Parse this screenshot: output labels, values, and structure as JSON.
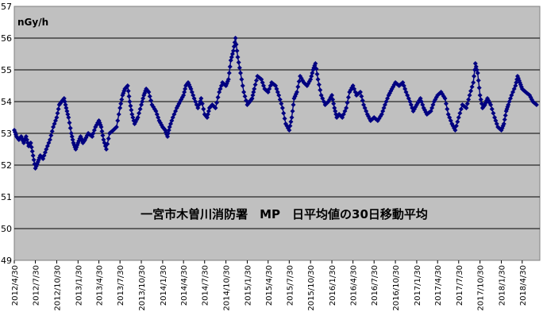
{
  "chart_data": {
    "type": "line",
    "title": "一宮市木曽川消防署　MP　日平均値の30日移動平均",
    "ylabel": "nGy/h",
    "xlabel": "",
    "ylim": [
      49,
      57
    ],
    "yticks": [
      49,
      50,
      51,
      52,
      53,
      54,
      55,
      56,
      57
    ],
    "xlim": [
      "2012-04-30",
      "2018-07-15"
    ],
    "xtick_labels": [
      "2012/4/30",
      "2012/7/30",
      "2012/10/30",
      "2013/1/30",
      "2013/4/30",
      "2013/7/30",
      "2013/10/30",
      "2014/1/30",
      "2014/4/30",
      "2014/7/30",
      "2014/10/30",
      "2015/1/30",
      "2015/4/30",
      "2015/7/30",
      "2015/10/30",
      "2016/1/30",
      "2016/4/30",
      "2016/7/30",
      "2016/10/30",
      "2017/1/30",
      "2017/4/30",
      "2017/7/30",
      "2017/10/30",
      "2018/1/30",
      "2018/4/30"
    ],
    "grid": true,
    "legend": "none",
    "series": [
      {
        "marker": "diamond",
        "color": "#000080",
        "points": [
          [
            "2012-04-30",
            53.1
          ],
          [
            "2012-05-10",
            52.9
          ],
          [
            "2012-05-20",
            52.8
          ],
          [
            "2012-05-30",
            52.9
          ],
          [
            "2012-06-10",
            52.7
          ],
          [
            "2012-06-20",
            52.9
          ],
          [
            "2012-07-01",
            52.6
          ],
          [
            "2012-07-10",
            52.7
          ],
          [
            "2012-07-20",
            52.3
          ],
          [
            "2012-07-30",
            51.9
          ],
          [
            "2012-08-10",
            52.1
          ],
          [
            "2012-08-20",
            52.3
          ],
          [
            "2012-09-01",
            52.2
          ],
          [
            "2012-09-15",
            52.5
          ],
          [
            "2012-10-01",
            52.8
          ],
          [
            "2012-10-15",
            53.2
          ],
          [
            "2012-10-30",
            53.5
          ],
          [
            "2012-11-10",
            53.9
          ],
          [
            "2012-11-20",
            54.0
          ],
          [
            "2012-12-01",
            54.1
          ],
          [
            "2012-12-10",
            53.8
          ],
          [
            "2012-12-20",
            53.5
          ],
          [
            "2013-01-01",
            53.0
          ],
          [
            "2013-01-10",
            52.7
          ],
          [
            "2013-01-20",
            52.5
          ],
          [
            "2013-01-30",
            52.7
          ],
          [
            "2013-02-10",
            52.9
          ],
          [
            "2013-02-20",
            52.7
          ],
          [
            "2013-03-01",
            52.8
          ],
          [
            "2013-03-15",
            53.0
          ],
          [
            "2013-04-01",
            52.9
          ],
          [
            "2013-04-15",
            53.2
          ],
          [
            "2013-04-30",
            53.4
          ],
          [
            "2013-05-10",
            53.2
          ],
          [
            "2013-05-20",
            52.8
          ],
          [
            "2013-06-01",
            52.5
          ],
          [
            "2013-06-15",
            53.0
          ],
          [
            "2013-07-01",
            53.1
          ],
          [
            "2013-07-15",
            53.2
          ],
          [
            "2013-07-30",
            53.8
          ],
          [
            "2013-08-10",
            54.2
          ],
          [
            "2013-08-20",
            54.4
          ],
          [
            "2013-09-01",
            54.5
          ],
          [
            "2013-09-10",
            54.0
          ],
          [
            "2013-09-20",
            53.6
          ],
          [
            "2013-10-01",
            53.3
          ],
          [
            "2013-10-15",
            53.5
          ],
          [
            "2013-10-30",
            53.9
          ],
          [
            "2013-11-10",
            54.2
          ],
          [
            "2013-11-20",
            54.4
          ],
          [
            "2013-12-01",
            54.3
          ],
          [
            "2013-12-15",
            53.9
          ],
          [
            "2014-01-01",
            53.7
          ],
          [
            "2014-01-15",
            53.4
          ],
          [
            "2014-01-30",
            53.2
          ],
          [
            "2014-02-10",
            53.1
          ],
          [
            "2014-02-20",
            52.9
          ],
          [
            "2014-03-01",
            53.2
          ],
          [
            "2014-03-15",
            53.5
          ],
          [
            "2014-04-01",
            53.8
          ],
          [
            "2014-04-15",
            54.0
          ],
          [
            "2014-04-30",
            54.2
          ],
          [
            "2014-05-10",
            54.5
          ],
          [
            "2014-05-20",
            54.6
          ],
          [
            "2014-06-01",
            54.4
          ],
          [
            "2014-06-15",
            54.1
          ],
          [
            "2014-07-01",
            53.8
          ],
          [
            "2014-07-15",
            54.1
          ],
          [
            "2014-07-30",
            53.6
          ],
          [
            "2014-08-10",
            53.5
          ],
          [
            "2014-08-20",
            53.8
          ],
          [
            "2014-09-01",
            53.9
          ],
          [
            "2014-09-15",
            53.8
          ],
          [
            "2014-10-01",
            54.3
          ],
          [
            "2014-10-15",
            54.6
          ],
          [
            "2014-10-30",
            54.5
          ],
          [
            "2014-11-10",
            54.7
          ],
          [
            "2014-11-20",
            55.3
          ],
          [
            "2014-12-01",
            55.6
          ],
          [
            "2014-12-10",
            56.0
          ],
          [
            "2014-12-20",
            55.4
          ],
          [
            "2015-01-01",
            54.9
          ],
          [
            "2015-01-15",
            54.3
          ],
          [
            "2015-01-30",
            53.9
          ],
          [
            "2015-02-10",
            54.0
          ],
          [
            "2015-02-20",
            54.1
          ],
          [
            "2015-03-01",
            54.4
          ],
          [
            "2015-03-15",
            54.8
          ],
          [
            "2015-04-01",
            54.7
          ],
          [
            "2015-04-15",
            54.4
          ],
          [
            "2015-04-30",
            54.3
          ],
          [
            "2015-05-15",
            54.6
          ],
          [
            "2015-06-01",
            54.5
          ],
          [
            "2015-06-15",
            54.2
          ],
          [
            "2015-07-01",
            53.8
          ],
          [
            "2015-07-15",
            53.3
          ],
          [
            "2015-07-30",
            53.1
          ],
          [
            "2015-08-10",
            53.5
          ],
          [
            "2015-08-20",
            54.1
          ],
          [
            "2015-09-01",
            54.3
          ],
          [
            "2015-09-15",
            54.8
          ],
          [
            "2015-10-01",
            54.6
          ],
          [
            "2015-10-15",
            54.5
          ],
          [
            "2015-10-30",
            54.7
          ],
          [
            "2015-11-10",
            55.0
          ],
          [
            "2015-11-20",
            55.2
          ],
          [
            "2015-12-01",
            54.7
          ],
          [
            "2015-12-15",
            54.2
          ],
          [
            "2016-01-01",
            53.9
          ],
          [
            "2016-01-15",
            54.0
          ],
          [
            "2016-01-30",
            54.2
          ],
          [
            "2016-02-10",
            53.8
          ],
          [
            "2016-02-20",
            53.5
          ],
          [
            "2016-03-01",
            53.6
          ],
          [
            "2016-03-15",
            53.5
          ],
          [
            "2016-04-01",
            53.8
          ],
          [
            "2016-04-15",
            54.3
          ],
          [
            "2016-04-30",
            54.5
          ],
          [
            "2016-05-15",
            54.2
          ],
          [
            "2016-06-01",
            54.3
          ],
          [
            "2016-06-15",
            53.9
          ],
          [
            "2016-07-01",
            53.6
          ],
          [
            "2016-07-15",
            53.4
          ],
          [
            "2016-07-30",
            53.5
          ],
          [
            "2016-08-15",
            53.4
          ],
          [
            "2016-09-01",
            53.6
          ],
          [
            "2016-09-15",
            53.9
          ],
          [
            "2016-10-01",
            54.2
          ],
          [
            "2016-10-15",
            54.4
          ],
          [
            "2016-10-30",
            54.6
          ],
          [
            "2016-11-15",
            54.5
          ],
          [
            "2016-12-01",
            54.6
          ],
          [
            "2016-12-15",
            54.3
          ],
          [
            "2017-01-01",
            54.0
          ],
          [
            "2017-01-15",
            53.7
          ],
          [
            "2017-01-30",
            53.9
          ],
          [
            "2017-02-15",
            54.1
          ],
          [
            "2017-03-01",
            53.8
          ],
          [
            "2017-03-15",
            53.6
          ],
          [
            "2017-04-01",
            53.7
          ],
          [
            "2017-04-15",
            54.0
          ],
          [
            "2017-04-30",
            54.2
          ],
          [
            "2017-05-15",
            54.3
          ],
          [
            "2017-06-01",
            54.1
          ],
          [
            "2017-06-15",
            53.6
          ],
          [
            "2017-07-01",
            53.3
          ],
          [
            "2017-07-15",
            53.1
          ],
          [
            "2017-07-30",
            53.5
          ],
          [
            "2017-08-15",
            53.9
          ],
          [
            "2017-09-01",
            53.8
          ],
          [
            "2017-09-15",
            54.2
          ],
          [
            "2017-10-01",
            54.6
          ],
          [
            "2017-10-10",
            55.2
          ],
          [
            "2017-10-20",
            54.9
          ],
          [
            "2017-10-30",
            54.2
          ],
          [
            "2017-11-10",
            53.8
          ],
          [
            "2017-11-20",
            53.9
          ],
          [
            "2017-12-01",
            54.1
          ],
          [
            "2017-12-15",
            53.9
          ],
          [
            "2018-01-01",
            53.5
          ],
          [
            "2018-01-15",
            53.2
          ],
          [
            "2018-01-30",
            53.1
          ],
          [
            "2018-02-10",
            53.3
          ],
          [
            "2018-02-20",
            53.7
          ],
          [
            "2018-03-01",
            53.9
          ],
          [
            "2018-03-15",
            54.2
          ],
          [
            "2018-04-01",
            54.5
          ],
          [
            "2018-04-10",
            54.8
          ],
          [
            "2018-04-20",
            54.6
          ],
          [
            "2018-04-30",
            54.4
          ],
          [
            "2018-05-15",
            54.3
          ],
          [
            "2018-06-01",
            54.2
          ],
          [
            "2018-06-15",
            54.0
          ],
          [
            "2018-07-01",
            53.9
          ]
        ]
      }
    ]
  }
}
